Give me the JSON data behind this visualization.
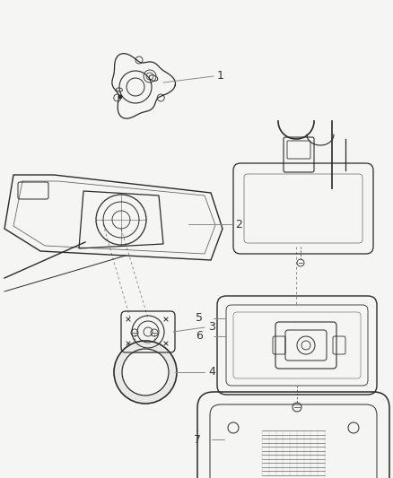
{
  "background_color": "#f5f5f3",
  "line_color": "#2a2a2a",
  "label_color": "#333333",
  "leader_color": "#888888",
  "figsize": [
    4.38,
    5.33
  ],
  "dpi": 100
}
